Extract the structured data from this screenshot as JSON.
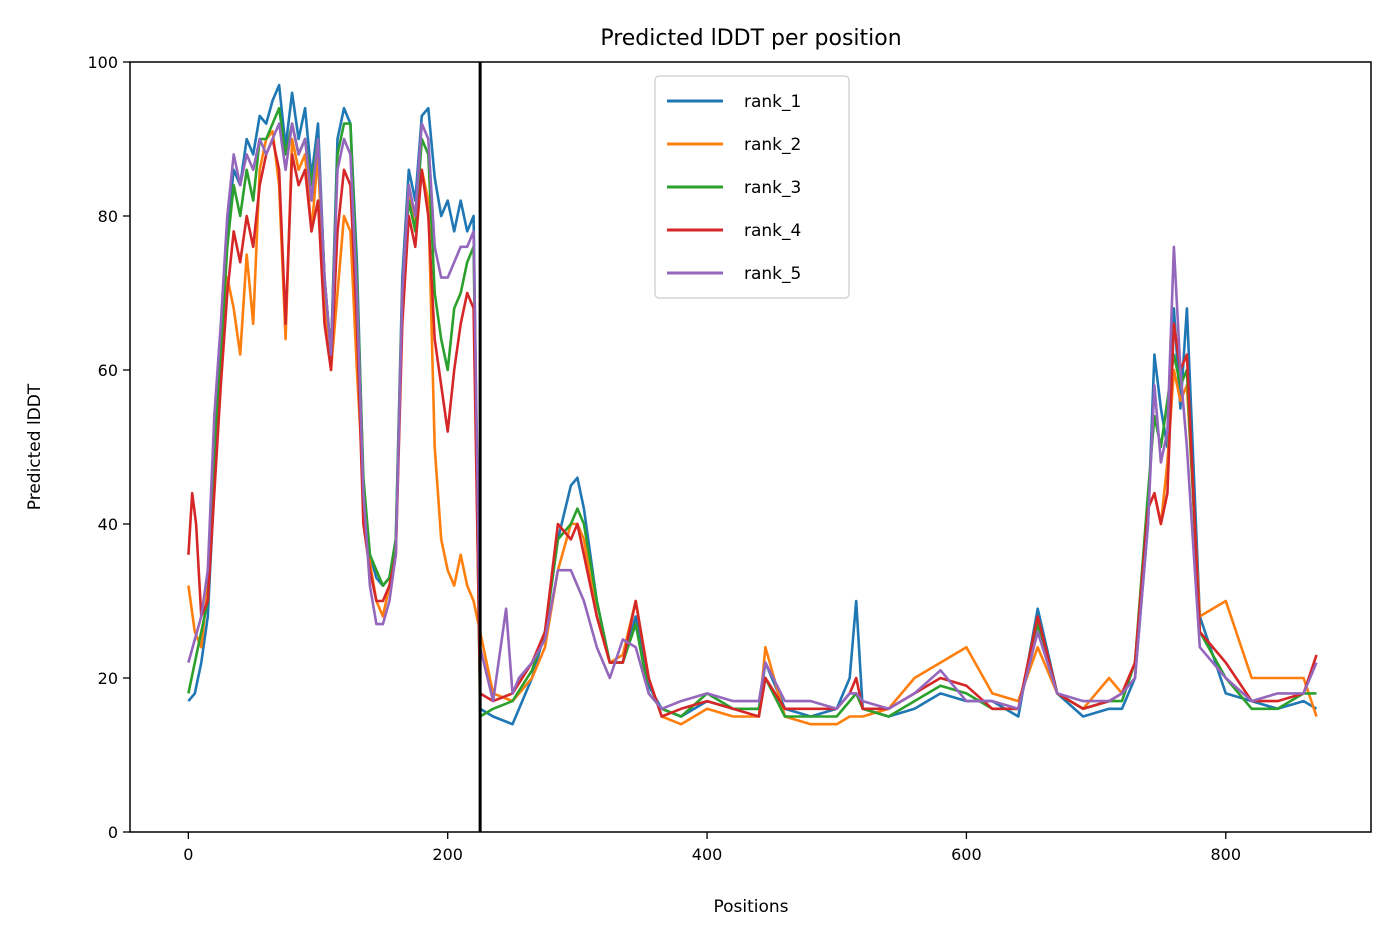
{
  "chart_data": {
    "type": "line",
    "title": "Predicted lDDT per position",
    "xlabel": "Positions",
    "ylabel": "Predicted lDDT",
    "xlim": [
      -45,
      912
    ],
    "ylim": [
      0,
      100
    ],
    "xticks": [
      0,
      200,
      400,
      600,
      800
    ],
    "yticks": [
      0,
      20,
      40,
      60,
      80,
      100
    ],
    "grid": false,
    "legend_position": "top-center",
    "vline_x": 225,
    "series": [
      {
        "name": "rank_1",
        "color": "#1f77b4",
        "x": [
          0,
          5,
          10,
          15,
          20,
          25,
          30,
          35,
          40,
          45,
          50,
          55,
          60,
          65,
          70,
          75,
          80,
          85,
          90,
          95,
          100,
          105,
          110,
          115,
          120,
          125,
          130,
          135,
          140,
          145,
          150,
          155,
          160,
          165,
          170,
          175,
          180,
          185,
          190,
          195,
          200,
          205,
          210,
          215,
          220,
          225,
          235,
          250,
          265,
          275,
          285,
          295,
          300,
          305,
          315,
          325,
          335,
          345,
          355,
          365,
          380,
          400,
          420,
          440,
          445,
          460,
          480,
          500,
          510,
          515,
          520,
          540,
          560,
          580,
          600,
          620,
          640,
          655,
          670,
          690,
          710,
          720,
          730,
          740,
          745,
          750,
          755,
          760,
          765,
          770,
          780,
          800,
          820,
          840,
          860,
          870
        ],
        "y": [
          17,
          18,
          22,
          28,
          45,
          62,
          78,
          86,
          84,
          90,
          88,
          93,
          92,
          95,
          97,
          89,
          96,
          90,
          94,
          85,
          92,
          72,
          62,
          90,
          94,
          92,
          74,
          45,
          36,
          33,
          32,
          33,
          38,
          72,
          86,
          82,
          93,
          94,
          85,
          80,
          82,
          78,
          82,
          78,
          80,
          16,
          15,
          14,
          20,
          26,
          38,
          45,
          46,
          42,
          30,
          22,
          22,
          28,
          19,
          16,
          15,
          17,
          16,
          16,
          22,
          16,
          15,
          16,
          20,
          30,
          16,
          15,
          16,
          18,
          17,
          17,
          15,
          29,
          18,
          15,
          16,
          16,
          20,
          40,
          62,
          55,
          50,
          68,
          55,
          68,
          28,
          18,
          17,
          16,
          17,
          16
        ]
      },
      {
        "name": "rank_2",
        "color": "#ff7f0e",
        "x": [
          0,
          5,
          10,
          15,
          20,
          25,
          30,
          35,
          40,
          45,
          50,
          55,
          60,
          65,
          70,
          75,
          80,
          85,
          90,
          95,
          100,
          105,
          110,
          115,
          120,
          125,
          130,
          135,
          140,
          145,
          150,
          155,
          160,
          165,
          170,
          175,
          180,
          185,
          190,
          195,
          200,
          205,
          210,
          215,
          220,
          225,
          235,
          250,
          265,
          275,
          285,
          295,
          300,
          305,
          315,
          325,
          335,
          345,
          355,
          365,
          380,
          400,
          420,
          440,
          445,
          460,
          480,
          500,
          510,
          515,
          520,
          540,
          560,
          580,
          600,
          620,
          640,
          655,
          670,
          690,
          710,
          720,
          730,
          740,
          745,
          750,
          755,
          760,
          765,
          770,
          780,
          800,
          820,
          840,
          860,
          870
        ],
        "y": [
          32,
          26,
          24,
          32,
          52,
          64,
          72,
          68,
          62,
          75,
          66,
          86,
          90,
          91,
          84,
          64,
          90,
          86,
          88,
          78,
          88,
          68,
          60,
          70,
          80,
          78,
          60,
          45,
          35,
          30,
          28,
          32,
          36,
          70,
          84,
          78,
          86,
          82,
          50,
          38,
          34,
          32,
          36,
          32,
          30,
          26,
          18,
          17,
          20,
          24,
          34,
          40,
          40,
          38,
          28,
          22,
          23,
          30,
          20,
          15,
          14,
          16,
          15,
          15,
          24,
          15,
          14,
          14,
          15,
          15,
          15,
          16,
          20,
          22,
          24,
          18,
          17,
          24,
          18,
          16,
          20,
          18,
          22,
          42,
          44,
          40,
          48,
          60,
          56,
          58,
          28,
          30,
          20,
          20,
          20,
          15
        ]
      },
      {
        "name": "rank_3",
        "color": "#2ca02c",
        "x": [
          0,
          5,
          10,
          15,
          20,
          25,
          30,
          35,
          40,
          45,
          50,
          55,
          60,
          65,
          70,
          75,
          80,
          85,
          90,
          95,
          100,
          105,
          110,
          115,
          120,
          125,
          130,
          135,
          140,
          145,
          150,
          155,
          160,
          165,
          170,
          175,
          180,
          185,
          190,
          195,
          200,
          205,
          210,
          215,
          220,
          225,
          235,
          250,
          265,
          275,
          285,
          295,
          300,
          305,
          315,
          325,
          335,
          345,
          355,
          365,
          380,
          400,
          420,
          440,
          445,
          460,
          480,
          500,
          510,
          515,
          520,
          540,
          560,
          580,
          600,
          620,
          640,
          655,
          670,
          690,
          710,
          720,
          730,
          740,
          745,
          750,
          755,
          760,
          765,
          770,
          780,
          800,
          820,
          840,
          860,
          870
        ],
        "y": [
          18,
          22,
          26,
          30,
          50,
          62,
          76,
          84,
          80,
          86,
          82,
          90,
          90,
          92,
          94,
          88,
          92,
          88,
          90,
          84,
          90,
          72,
          62,
          88,
          92,
          92,
          72,
          46,
          36,
          34,
          32,
          33,
          38,
          70,
          82,
          78,
          90,
          88,
          70,
          64,
          60,
          68,
          70,
          74,
          76,
          15,
          16,
          17,
          21,
          26,
          38,
          40,
          42,
          40,
          30,
          22,
          22,
          27,
          18,
          16,
          15,
          18,
          16,
          16,
          20,
          15,
          15,
          15,
          17,
          18,
          16,
          15,
          17,
          19,
          18,
          16,
          16,
          27,
          18,
          16,
          17,
          17,
          22,
          44,
          54,
          50,
          56,
          62,
          58,
          60,
          26,
          20,
          16,
          16,
          18,
          18
        ]
      },
      {
        "name": "rank_4",
        "color": "#d62728",
        "x": [
          0,
          3,
          6,
          10,
          15,
          20,
          25,
          30,
          35,
          40,
          45,
          50,
          55,
          60,
          65,
          70,
          75,
          80,
          85,
          90,
          95,
          100,
          105,
          110,
          115,
          120,
          125,
          130,
          135,
          140,
          145,
          150,
          155,
          160,
          165,
          170,
          175,
          180,
          185,
          190,
          195,
          200,
          205,
          210,
          215,
          220,
          225,
          235,
          250,
          265,
          275,
          285,
          295,
          300,
          305,
          315,
          325,
          335,
          345,
          355,
          365,
          380,
          400,
          420,
          440,
          445,
          460,
          480,
          500,
          510,
          515,
          520,
          540,
          560,
          580,
          600,
          620,
          640,
          655,
          670,
          690,
          710,
          720,
          730,
          740,
          745,
          750,
          755,
          760,
          765,
          770,
          780,
          800,
          820,
          840,
          860,
          870
        ],
        "y": [
          36,
          44,
          40,
          28,
          30,
          44,
          58,
          70,
          78,
          74,
          80,
          76,
          84,
          88,
          90,
          86,
          66,
          88,
          84,
          86,
          78,
          82,
          66,
          60,
          78,
          86,
          84,
          66,
          40,
          34,
          30,
          30,
          32,
          36,
          66,
          80,
          76,
          86,
          80,
          64,
          58,
          52,
          60,
          66,
          70,
          68,
          18,
          17,
          18,
          22,
          26,
          40,
          38,
          40,
          36,
          28,
          22,
          22,
          30,
          20,
          15,
          16,
          17,
          16,
          15,
          20,
          16,
          16,
          16,
          18,
          20,
          16,
          16,
          18,
          20,
          19,
          16,
          16,
          28,
          18,
          16,
          17,
          18,
          22,
          42,
          44,
          40,
          44,
          66,
          60,
          62,
          26,
          22,
          17,
          17,
          18,
          23
        ]
      },
      {
        "name": "rank_5",
        "color": "#9467bd",
        "x": [
          0,
          5,
          10,
          15,
          20,
          25,
          30,
          35,
          40,
          45,
          50,
          55,
          60,
          65,
          70,
          75,
          80,
          85,
          90,
          95,
          100,
          105,
          110,
          115,
          120,
          125,
          130,
          135,
          140,
          145,
          150,
          155,
          160,
          165,
          170,
          175,
          180,
          185,
          190,
          195,
          200,
          205,
          210,
          215,
          220,
          225,
          235,
          245,
          250,
          255,
          265,
          275,
          285,
          295,
          300,
          305,
          315,
          325,
          335,
          345,
          355,
          365,
          380,
          400,
          420,
          440,
          445,
          460,
          480,
          500,
          510,
          515,
          520,
          540,
          560,
          580,
          600,
          620,
          640,
          655,
          670,
          690,
          710,
          720,
          730,
          740,
          745,
          750,
          755,
          760,
          765,
          770,
          780,
          800,
          820,
          840,
          860,
          870
        ],
        "y": [
          22,
          25,
          28,
          34,
          54,
          66,
          80,
          88,
          84,
          88,
          86,
          90,
          88,
          90,
          92,
          86,
          92,
          88,
          90,
          82,
          90,
          72,
          62,
          86,
          90,
          88,
          70,
          44,
          32,
          27,
          27,
          30,
          36,
          70,
          84,
          80,
          92,
          90,
          76,
          72,
          72,
          74,
          76,
          76,
          78,
          24,
          17,
          29,
          18,
          20,
          22,
          25,
          34,
          34,
          32,
          30,
          24,
          20,
          25,
          24,
          18,
          16,
          17,
          18,
          17,
          17,
          22,
          17,
          17,
          16,
          18,
          18,
          17,
          16,
          18,
          21,
          17,
          17,
          16,
          26,
          18,
          17,
          17,
          18,
          20,
          40,
          58,
          48,
          52,
          76,
          60,
          50,
          24,
          20,
          17,
          18,
          18,
          22
        ]
      }
    ]
  }
}
